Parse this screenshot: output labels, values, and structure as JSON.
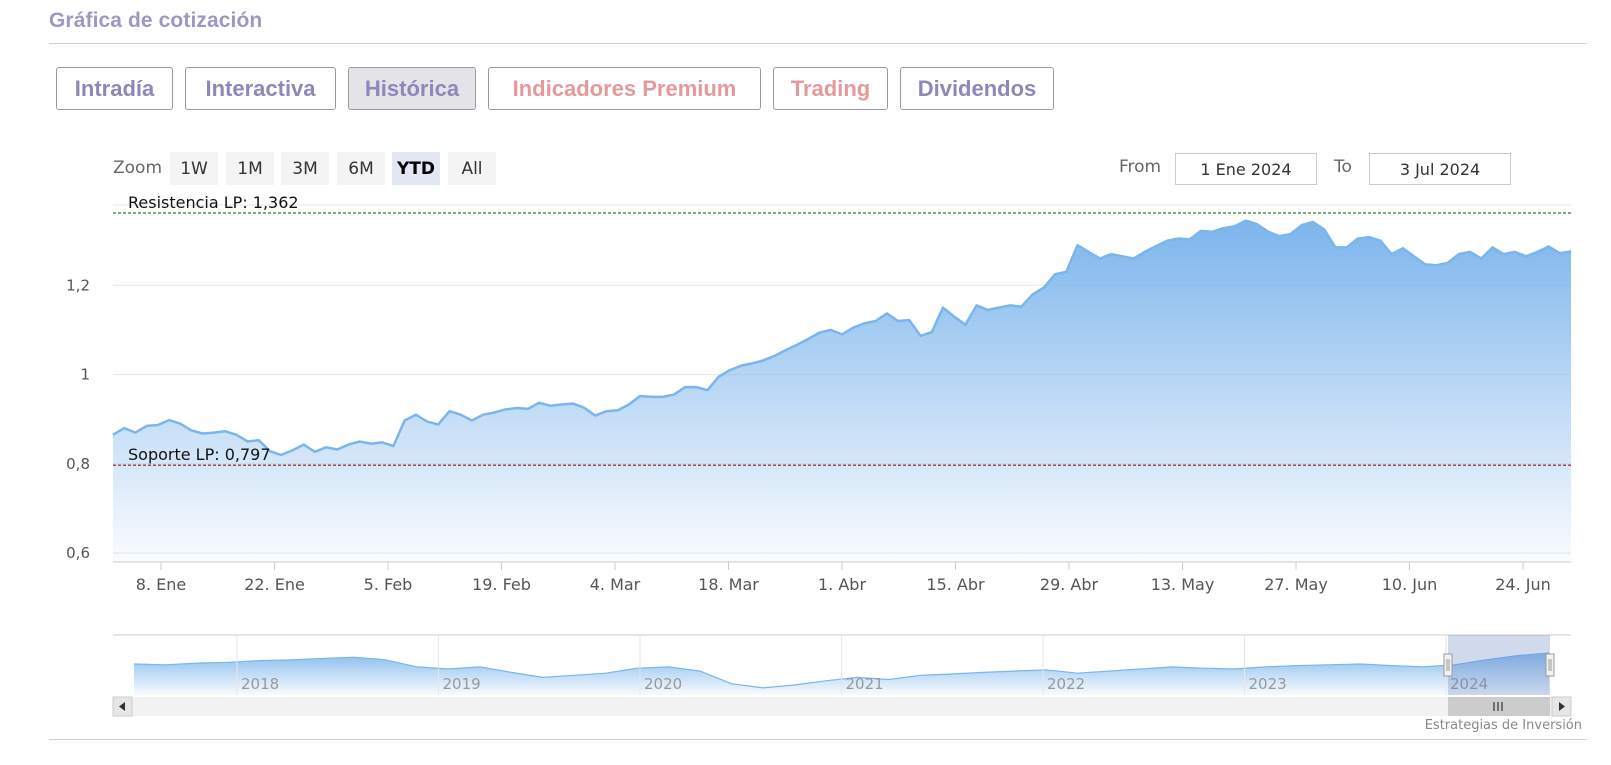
{
  "header": {
    "title": "Gráfica de cotización"
  },
  "tabs": [
    {
      "label": "Intradía",
      "color": "#8d87ba",
      "active": false
    },
    {
      "label": "Interactiva",
      "color": "#8d87ba",
      "active": false
    },
    {
      "label": "Histórica",
      "color": "#8d87ba",
      "active": true
    },
    {
      "label": "Indicadores Premium",
      "color": "#e59a9a",
      "active": false
    },
    {
      "label": "Trading",
      "color": "#e59a9a",
      "active": false
    },
    {
      "label": "Dividendos",
      "color": "#8d87ba",
      "active": false
    }
  ],
  "range_selector": {
    "zoom_label": "Zoom",
    "buttons": [
      "1W",
      "1M",
      "3M",
      "6M",
      "YTD",
      "All"
    ],
    "selected": "YTD",
    "from_label": "From",
    "from_value": "1 Ene 2024",
    "to_label": "To",
    "to_value": "3 Jul 2024"
  },
  "credit": "Estrategias de Inversión",
  "chart_data": {
    "type": "area",
    "x_tick_labels": [
      "8. Ene",
      "22. Ene",
      "5. Feb",
      "19. Feb",
      "4. Mar",
      "18. Mar",
      "1. Abr",
      "15. Abr",
      "29. Abr",
      "13. May",
      "27. May",
      "10. Jun",
      "24. Jun"
    ],
    "y_tick_labels": [
      "0,6",
      "0,8",
      "1",
      "1,2"
    ],
    "ylim": [
      0.58,
      1.38
    ],
    "grid": true,
    "series_color": "#7cb5ec",
    "series": [
      {
        "values": [
          0.865,
          0.88,
          0.87,
          0.885,
          0.887,
          0.898,
          0.89,
          0.875,
          0.868,
          0.87,
          0.873,
          0.865,
          0.85,
          0.853,
          0.828,
          0.82,
          0.83,
          0.843,
          0.827,
          0.837,
          0.832,
          0.843,
          0.85,
          0.845,
          0.848,
          0.84,
          0.897,
          0.91,
          0.895,
          0.888,
          0.918,
          0.91,
          0.897,
          0.91,
          0.915,
          0.922,
          0.925,
          0.923,
          0.937,
          0.93,
          0.933,
          0.935,
          0.926,
          0.908,
          0.918,
          0.92,
          0.933,
          0.952,
          0.95,
          0.95,
          0.955,
          0.972,
          0.972,
          0.965,
          0.995,
          1.01,
          1.02,
          1.025,
          1.032,
          1.042,
          1.055,
          1.067,
          1.08,
          1.094,
          1.1,
          1.09,
          1.105,
          1.115,
          1.12,
          1.137,
          1.12,
          1.122,
          1.087,
          1.095,
          1.15,
          1.13,
          1.112,
          1.155,
          1.145,
          1.15,
          1.155,
          1.152,
          1.18,
          1.195,
          1.225,
          1.23,
          1.29,
          1.275,
          1.26,
          1.27,
          1.265,
          1.26,
          1.275,
          1.288,
          1.3,
          1.305,
          1.303,
          1.322,
          1.32,
          1.328,
          1.332,
          1.345,
          1.337,
          1.32,
          1.31,
          1.315,
          1.335,
          1.342,
          1.325,
          1.285,
          1.285,
          1.305,
          1.308,
          1.3,
          1.27,
          1.283,
          1.265,
          1.247,
          1.245,
          1.25,
          1.27,
          1.275,
          1.26,
          1.285,
          1.27,
          1.275,
          1.265,
          1.275,
          1.287,
          1.272,
          1.276
        ]
      }
    ],
    "annotations": [
      {
        "label": "Resistencia LP: 1,362",
        "value": 1.362,
        "color": "#2e7d32",
        "style": "dashed"
      },
      {
        "label": "Soporte LP: 0,797",
        "value": 0.797,
        "color": "#8b1a1a",
        "style": "dashed"
      }
    ],
    "navigator": {
      "year_labels": [
        "2018",
        "2019",
        "2020",
        "2021",
        "2022",
        "2023",
        "2024"
      ],
      "profile": [
        0.62,
        0.6,
        0.64,
        0.66,
        0.7,
        0.72,
        0.75,
        0.78,
        0.72,
        0.55,
        0.5,
        0.55,
        0.42,
        0.3,
        0.35,
        0.4,
        0.52,
        0.55,
        0.45,
        0.15,
        0.05,
        0.12,
        0.22,
        0.3,
        0.25,
        0.35,
        0.38,
        0.42,
        0.45,
        0.48,
        0.4,
        0.45,
        0.5,
        0.55,
        0.52,
        0.5,
        0.55,
        0.58,
        0.6,
        0.62,
        0.58,
        0.55,
        0.6,
        0.72,
        0.82,
        0.88
      ]
    }
  }
}
